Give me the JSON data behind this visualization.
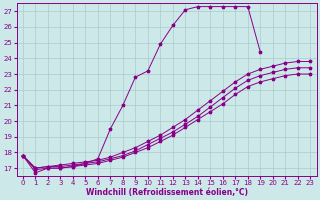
{
  "xlabel": "Windchill (Refroidissement éolien,°C)",
  "bg_color": "#cce8e8",
  "grid_color": "#aacccc",
  "line_color": "#880088",
  "xlim": [
    -0.5,
    23.5
  ],
  "ylim": [
    16.5,
    27.5
  ],
  "xticks": [
    0,
    1,
    2,
    3,
    4,
    5,
    6,
    7,
    8,
    9,
    10,
    11,
    12,
    13,
    14,
    15,
    16,
    17,
    18,
    19,
    20,
    21,
    22,
    23
  ],
  "yticks": [
    17,
    18,
    19,
    20,
    21,
    22,
    23,
    24,
    25,
    26,
    27
  ],
  "series": [
    {
      "x": [
        0,
        1,
        2,
        3,
        4,
        5,
        6,
        7,
        8,
        9,
        10,
        11,
        12,
        13,
        14,
        15,
        16,
        17,
        18,
        19
      ],
      "y": [
        17.8,
        16.7,
        17.0,
        17.0,
        17.1,
        17.3,
        17.6,
        19.5,
        21.0,
        22.8,
        23.2,
        24.9,
        26.1,
        27.1,
        27.3,
        27.3,
        27.3,
        27.3,
        27.3,
        24.4
      ]
    },
    {
      "x": [
        0,
        1,
        2,
        3,
        4,
        5,
        6,
        7,
        8,
        9,
        10,
        11,
        12,
        13,
        14,
        15,
        16,
        17,
        18,
        19,
        20,
        21,
        22,
        23
      ],
      "y": [
        17.8,
        17.0,
        17.1,
        17.2,
        17.3,
        17.4,
        17.5,
        17.7,
        18.0,
        18.3,
        18.7,
        19.1,
        19.6,
        20.1,
        20.7,
        21.3,
        21.9,
        22.5,
        23.0,
        23.3,
        23.5,
        23.7,
        23.8,
        23.8
      ]
    },
    {
      "x": [
        0,
        1,
        2,
        3,
        4,
        5,
        6,
        7,
        8,
        9,
        10,
        11,
        12,
        13,
        14,
        15,
        16,
        17,
        18,
        19,
        20,
        21,
        22,
        23
      ],
      "y": [
        17.8,
        17.0,
        17.1,
        17.1,
        17.2,
        17.3,
        17.4,
        17.6,
        17.8,
        18.1,
        18.5,
        18.9,
        19.3,
        19.8,
        20.3,
        20.9,
        21.5,
        22.1,
        22.6,
        22.9,
        23.1,
        23.3,
        23.4,
        23.4
      ]
    },
    {
      "x": [
        0,
        1,
        2,
        3,
        4,
        5,
        6,
        7,
        8,
        9,
        10,
        11,
        12,
        13,
        14,
        15,
        16,
        17,
        18,
        19,
        20,
        21,
        22,
        23
      ],
      "y": [
        17.8,
        16.9,
        17.0,
        17.0,
        17.1,
        17.2,
        17.3,
        17.5,
        17.7,
        18.0,
        18.3,
        18.7,
        19.1,
        19.6,
        20.1,
        20.6,
        21.1,
        21.7,
        22.2,
        22.5,
        22.7,
        22.9,
        23.0,
        23.0
      ]
    }
  ]
}
